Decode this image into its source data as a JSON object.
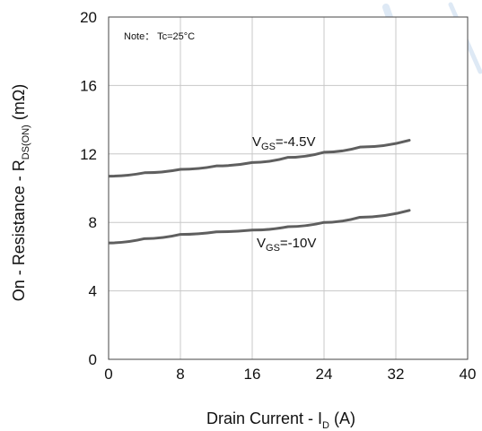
{
  "chart_data": {
    "type": "line",
    "note": "Note： Tc=25°C",
    "xlabel": {
      "main": "Drain Current - I",
      "sub": "D",
      "unit": " (A)"
    },
    "ylabel": {
      "main": "On - Resistance - R",
      "sub": "DS(ON)",
      "unit": " (mΩ)"
    },
    "xlim": [
      0,
      40
    ],
    "ylim": [
      0,
      20
    ],
    "x_ticks": [
      "0",
      "8",
      "16",
      "24",
      "32",
      "40"
    ],
    "y_ticks": [
      "0",
      "4",
      "8",
      "12",
      "16",
      "20"
    ],
    "grid": true,
    "colors": {
      "line": "#5f5f5f",
      "grid": "#c8c8c8",
      "axis": "#444444",
      "watermark": "#dbe7f4"
    },
    "series": [
      {
        "label_main": "V",
        "label_sub": "GS",
        "label_value": "=-4.5V",
        "x": [
          0,
          4,
          8,
          12,
          16,
          20,
          24,
          28,
          33.5
        ],
        "y": [
          10.7,
          10.9,
          11.1,
          11.3,
          11.5,
          11.8,
          12.1,
          12.4,
          12.8
        ]
      },
      {
        "label_main": "V",
        "label_sub": "GS",
        "label_value": "=-10V",
        "x": [
          0,
          4,
          8,
          12,
          16,
          20,
          24,
          28,
          33.5
        ],
        "y": [
          6.8,
          7.05,
          7.3,
          7.45,
          7.55,
          7.75,
          8.0,
          8.3,
          8.7
        ]
      }
    ]
  }
}
